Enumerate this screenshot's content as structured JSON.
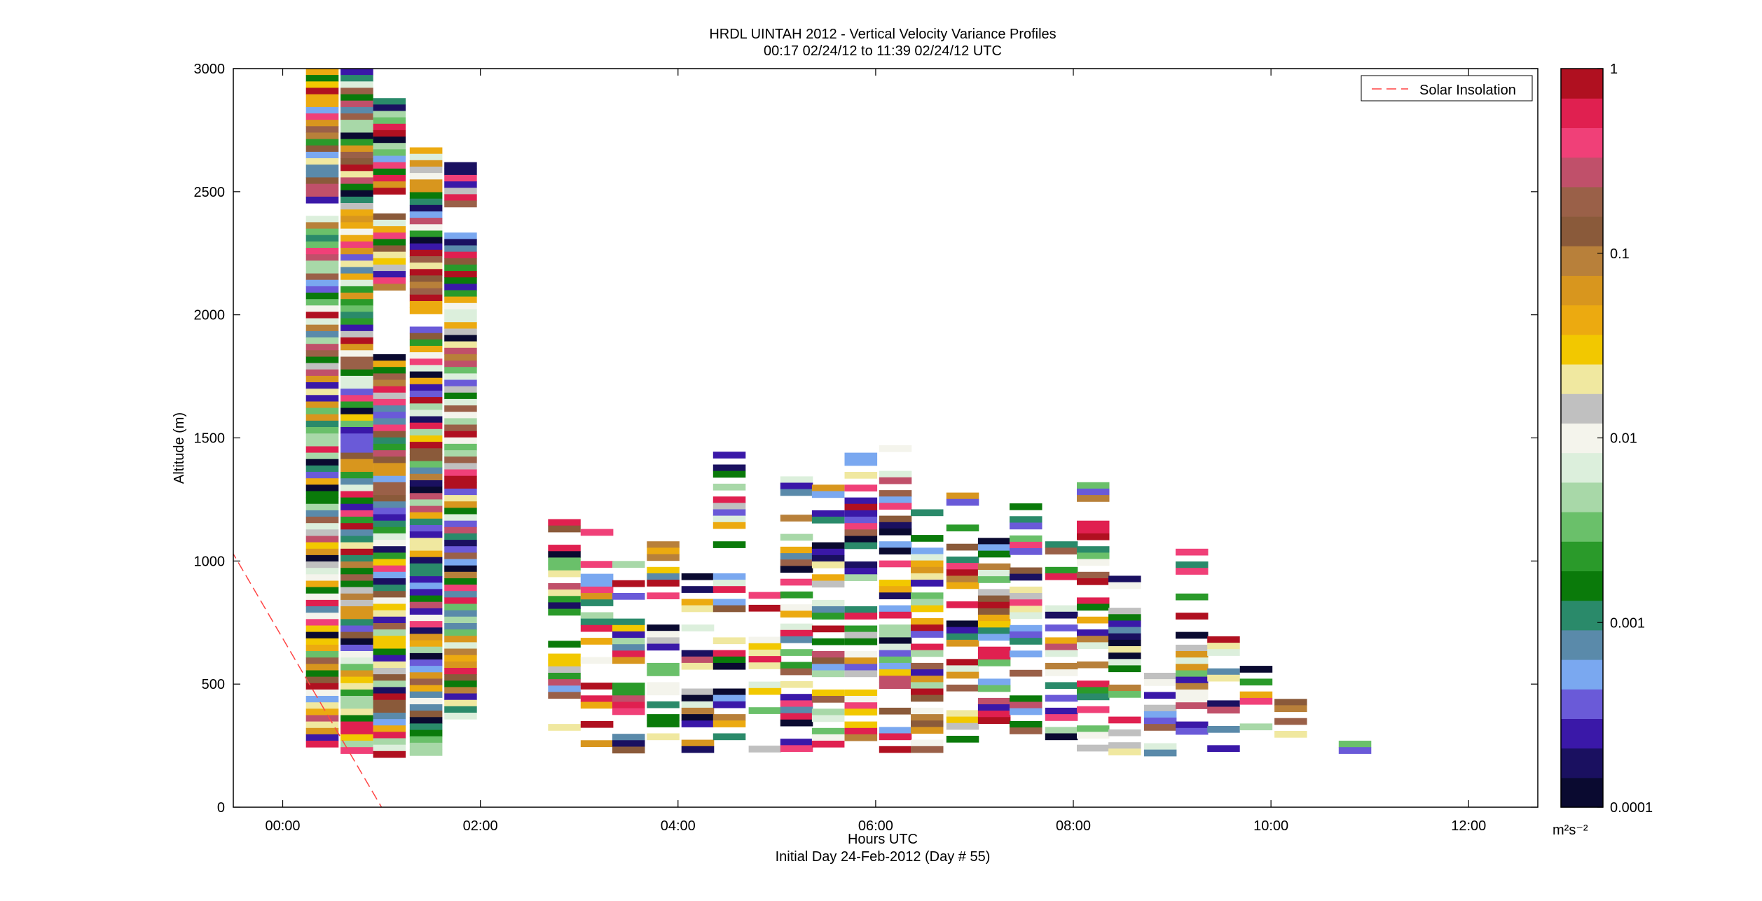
{
  "chart_data": {
    "type": "heatmap",
    "title_line1": "HRDL UINTAH 2012 - Vertical Velocity Variance Profiles",
    "title_line2": "00:17 02/24/12 to 11:39 02/24/12  UTC",
    "xlabel": "Hours UTC",
    "xlabel2": "Initial Day 24-Feb-2012 (Day # 55)",
    "ylabel": "Altitude (m)",
    "xlim": [
      -0.5,
      12.7
    ],
    "ylim": [
      0,
      3000
    ],
    "x_ticks": [
      {
        "value": 0,
        "label": "00:00"
      },
      {
        "value": 2,
        "label": "02:00"
      },
      {
        "value": 4,
        "label": "04:00"
      },
      {
        "value": 6,
        "label": "06:00"
      },
      {
        "value": 8,
        "label": "08:00"
      },
      {
        "value": 10,
        "label": "10:00"
      },
      {
        "value": 12,
        "label": "12:00"
      }
    ],
    "y_ticks": [
      {
        "value": 0,
        "label": "0"
      },
      {
        "value": 500,
        "label": "500"
      },
      {
        "value": 1000,
        "label": "1000"
      },
      {
        "value": 1500,
        "label": "1500"
      },
      {
        "value": 2000,
        "label": "2000"
      },
      {
        "value": 2500,
        "label": "2500"
      },
      {
        "value": 3000,
        "label": "3000"
      }
    ],
    "colorbar": {
      "scale": "log",
      "range": [
        0.0001,
        1
      ],
      "unit": "m²s⁻²",
      "ticks": [
        {
          "value": 1,
          "label": "1"
        },
        {
          "value": 0.1,
          "label": "0.1"
        },
        {
          "value": 0.01,
          "label": "0.01"
        },
        {
          "value": 0.001,
          "label": "0.001"
        },
        {
          "value": 0.0001,
          "label": "0.0001"
        }
      ],
      "colors": [
        "#0a0a30",
        "#1a1060",
        "#3a18a8",
        "#6a5ad8",
        "#7aa8f0",
        "#5a8aaa",
        "#2a8a6a",
        "#0a7a0a",
        "#2a9a2a",
        "#6ac06a",
        "#a8d8a8",
        "#dcefdc",
        "#f4f4ec",
        "#c0c0c0",
        "#f0e8a0",
        "#f2c800",
        "#ecaa10",
        "#d8961e",
        "#b8803a",
        "#8a5a3a",
        "#9a6048",
        "#c0506a",
        "#f04078",
        "#e02050",
        "#b01020"
      ]
    },
    "legend": {
      "placement": "top-right",
      "entries": [
        {
          "label": "Solar Insolation",
          "style": "dashed",
          "color": "#ff4444"
        }
      ]
    },
    "solar_line": {
      "x": [
        -0.75,
        1.0
      ],
      "y": [
        1200,
        0
      ]
    },
    "cell_width_hours": 0.33,
    "cell_height_m": 26,
    "profiles": [
      {
        "x": 0.4,
        "top": 3000,
        "bottom": 250,
        "empty": [
          [
            1700,
            2380
          ],
          [
            2450,
            2400
          ]
        ]
      },
      {
        "x": 0.75,
        "top": 3000,
        "bottom": 220,
        "empty": [
          [
            2130,
            2200
          ]
        ]
      },
      {
        "x": 1.08,
        "top": 2880,
        "bottom": 220,
        "empty": [
          [
            2500,
            2400
          ],
          [
            2100,
            1850
          ]
        ]
      },
      {
        "x": 1.45,
        "top": 2680,
        "bottom": 220,
        "empty": [
          [
            2000,
            1950
          ]
        ]
      },
      {
        "x": 1.8,
        "top": 2620,
        "bottom": 360,
        "empty": [
          [
            2450,
            2330
          ]
        ]
      },
      {
        "x": 2.85,
        "top": 1170,
        "bottom": 320,
        "sparse": 0.62
      },
      {
        "x": 3.18,
        "top": 1130,
        "bottom": 230,
        "sparse": 0.6
      },
      {
        "x": 3.5,
        "top": 1000,
        "bottom": 230,
        "sparse": 0.6
      },
      {
        "x": 3.85,
        "top": 1080,
        "bottom": 230,
        "sparse": 0.55
      },
      {
        "x": 4.2,
        "top": 950,
        "bottom": 230,
        "sparse": 0.55
      },
      {
        "x": 4.52,
        "top": 1470,
        "bottom": 230,
        "sparse": 0.5
      },
      {
        "x": 4.88,
        "top": 900,
        "bottom": 230,
        "sparse": 0.58
      },
      {
        "x": 5.2,
        "top": 1370,
        "bottom": 230,
        "sparse": 0.58
      },
      {
        "x": 5.52,
        "top": 1310,
        "bottom": 230,
        "sparse": 0.6
      },
      {
        "x": 5.85,
        "top": 1440,
        "bottom": 230,
        "sparse": 0.6
      },
      {
        "x": 6.2,
        "top": 1470,
        "bottom": 230,
        "sparse": 0.6
      },
      {
        "x": 6.52,
        "top": 1210,
        "bottom": 230,
        "sparse": 0.62
      },
      {
        "x": 6.88,
        "top": 1330,
        "bottom": 230,
        "sparse": 0.62
      },
      {
        "x": 7.2,
        "top": 1120,
        "bottom": 300,
        "sparse": 0.62
      },
      {
        "x": 7.52,
        "top": 1260,
        "bottom": 260,
        "sparse": 0.6
      },
      {
        "x": 7.88,
        "top": 1080,
        "bottom": 260,
        "sparse": 0.6
      },
      {
        "x": 8.2,
        "top": 1320,
        "bottom": 230,
        "sparse": 0.58
      },
      {
        "x": 8.52,
        "top": 940,
        "bottom": 230,
        "sparse": 0.6
      },
      {
        "x": 8.88,
        "top": 650,
        "bottom": 230,
        "sparse": 0.62
      },
      {
        "x": 9.2,
        "top": 1050,
        "bottom": 300,
        "sparse": 0.62
      },
      {
        "x": 9.52,
        "top": 720,
        "bottom": 230,
        "sparse": 0.6
      },
      {
        "x": 9.85,
        "top": 600,
        "bottom": 230,
        "sparse": 0.6
      },
      {
        "x": 10.2,
        "top": 440,
        "bottom": 300,
        "sparse": 0.55
      },
      {
        "x": 10.85,
        "top": 270,
        "bottom": 230,
        "sparse": 1.0
      }
    ]
  }
}
